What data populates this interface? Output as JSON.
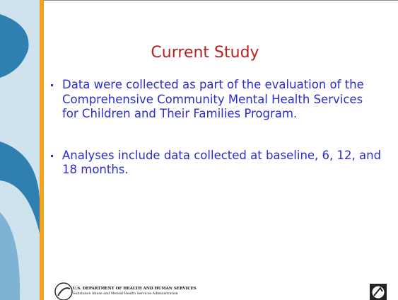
{
  "slide": {
    "title": "Current Study",
    "bullets": [
      "Data were collected as part of the evaluation of the Comprehensive Community Mental Health Services for Children and Their Families Program.",
      "Analyses include data collected at baseline, 6, 12, and 18 months."
    ],
    "footer": {
      "department": "U.S. DEPARTMENT OF HEALTH AND HUMAN SERVICES",
      "agency": "Substance Abuse and Mental Health Services Administration"
    }
  }
}
